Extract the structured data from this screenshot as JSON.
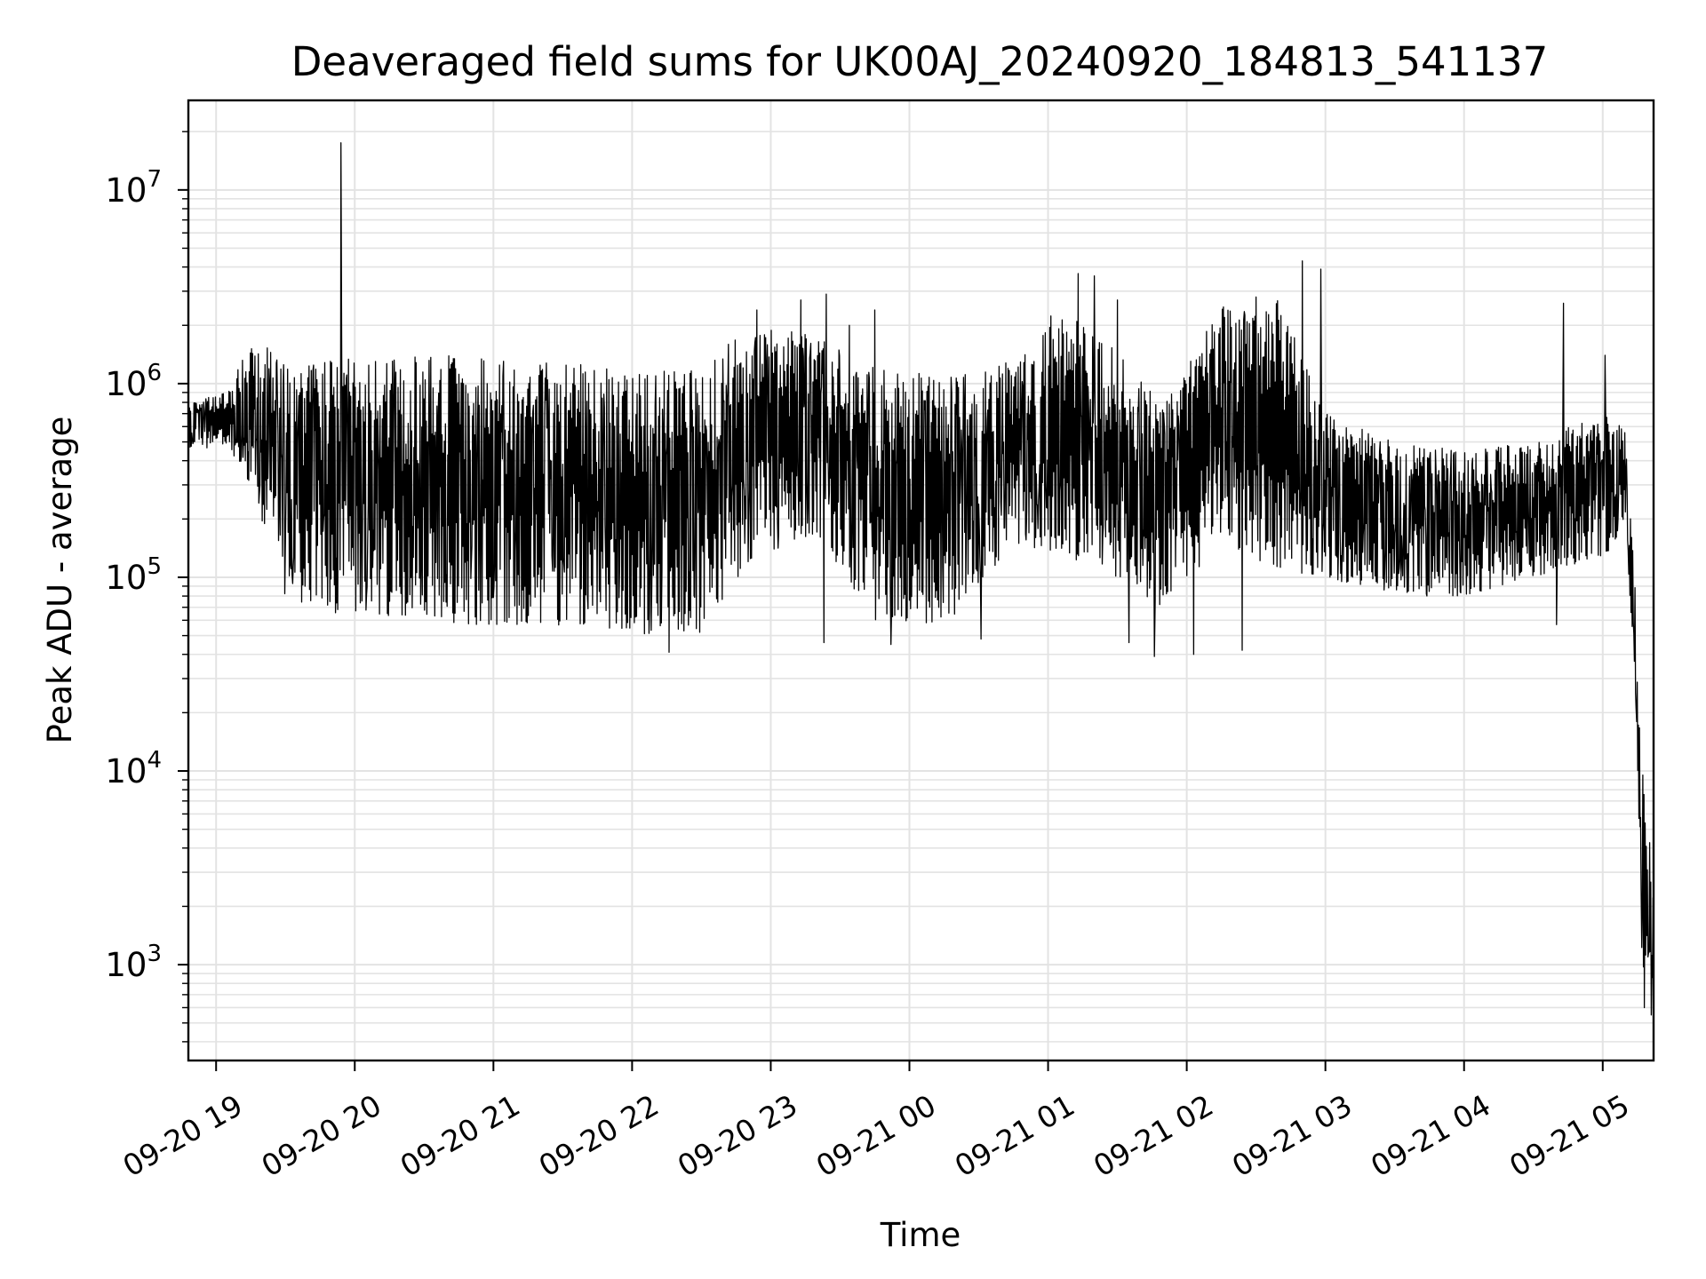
{
  "chart_data": {
    "type": "line",
    "title": "Deaveraged field sums for UK00AJ_20240920_184813_541137",
    "xlabel": "Time",
    "ylabel": "Peak ADU - average",
    "yscale": "log",
    "grid": true,
    "line_color": "#000000",
    "grid_color": "#e3e3e3",
    "x_range": [
      "2024-09-20 18:48",
      "2024-09-21 05:22"
    ],
    "ylim": [
      320,
      29000000
    ],
    "x_ticks": [
      {
        "label": "09-20 19",
        "time": "2024-09-20 19:00"
      },
      {
        "label": "09-20 20",
        "time": "2024-09-20 20:00"
      },
      {
        "label": "09-20 21",
        "time": "2024-09-20 21:00"
      },
      {
        "label": "09-20 22",
        "time": "2024-09-20 22:00"
      },
      {
        "label": "09-20 23",
        "time": "2024-09-20 23:00"
      },
      {
        "label": "09-21 00",
        "time": "2024-09-21 00:00"
      },
      {
        "label": "09-21 01",
        "time": "2024-09-21 01:00"
      },
      {
        "label": "09-21 02",
        "time": "2024-09-21 02:00"
      },
      {
        "label": "09-21 03",
        "time": "2024-09-21 03:00"
      },
      {
        "label": "09-21 04",
        "time": "2024-09-21 04:00"
      },
      {
        "label": "09-21 05",
        "time": "2024-09-21 05:00"
      }
    ],
    "y_ticks": [
      {
        "base": "10",
        "exp": "3",
        "value": 1000
      },
      {
        "base": "10",
        "exp": "4",
        "value": 10000
      },
      {
        "base": "10",
        "exp": "5",
        "value": 100000
      },
      {
        "base": "10",
        "exp": "6",
        "value": 1000000
      },
      {
        "base": "10",
        "exp": "7",
        "value": 10000000
      }
    ],
    "series": [
      {
        "band": [
          {
            "time": "2024-09-20 18:48",
            "low": 450000,
            "high": 800000
          },
          {
            "time": "2024-09-20 19:05",
            "low": 480000,
            "high": 900000
          },
          {
            "time": "2024-09-20 19:15",
            "low": 300000,
            "high": 1800000
          },
          {
            "time": "2024-09-20 19:30",
            "low": 80000,
            "high": 1300000
          },
          {
            "time": "2024-09-20 19:50",
            "low": 65000,
            "high": 1350000
          },
          {
            "time": "2024-09-20 20:10",
            "low": 60000,
            "high": 1350000
          },
          {
            "time": "2024-09-20 20:40",
            "low": 58000,
            "high": 1400000
          },
          {
            "time": "2024-09-20 21:10",
            "low": 55000,
            "high": 1300000
          },
          {
            "time": "2024-09-20 21:40",
            "low": 57000,
            "high": 1250000
          },
          {
            "time": "2024-09-20 22:10",
            "low": 50000,
            "high": 1150000
          },
          {
            "time": "2024-09-20 22:30",
            "low": 52000,
            "high": 1200000
          },
          {
            "time": "2024-09-20 22:50",
            "low": 120000,
            "high": 2000000
          },
          {
            "time": "2024-09-20 23:20",
            "low": 170000,
            "high": 1800000
          },
          {
            "time": "2024-09-20 23:45",
            "low": 60000,
            "high": 1200000
          },
          {
            "time": "2024-09-21 00:15",
            "low": 55000,
            "high": 1100000
          },
          {
            "time": "2024-09-21 00:45",
            "low": 150000,
            "high": 1400000
          },
          {
            "time": "2024-09-21 01:05",
            "low": 130000,
            "high": 2500000
          },
          {
            "time": "2024-09-21 01:30",
            "low": 100000,
            "high": 1500000
          },
          {
            "time": "2024-09-21 01:50",
            "low": 70000,
            "high": 800000
          },
          {
            "time": "2024-09-21 02:15",
            "low": 150000,
            "high": 2500000
          },
          {
            "time": "2024-09-21 02:40",
            "low": 110000,
            "high": 2700000
          },
          {
            "time": "2024-09-21 03:00",
            "low": 100000,
            "high": 700000
          },
          {
            "time": "2024-09-21 03:30",
            "low": 80000,
            "high": 500000
          },
          {
            "time": "2024-09-21 04:00",
            "low": 80000,
            "high": 450000
          },
          {
            "time": "2024-09-21 04:30",
            "low": 100000,
            "high": 500000
          },
          {
            "time": "2024-09-21 05:00",
            "low": 130000,
            "high": 700000
          },
          {
            "time": "2024-09-21 05:10",
            "low": 160000,
            "high": 600000
          },
          {
            "time": "2024-09-21 05:14",
            "low": 30000,
            "high": 90000
          },
          {
            "time": "2024-09-21 05:17",
            "low": 1000,
            "high": 12000
          },
          {
            "time": "2024-09-21 05:22",
            "low": 800,
            "high": 2500
          }
        ],
        "spikes": [
          {
            "time": "2024-09-20 19:54",
            "value": 17500000
          },
          {
            "time": "2024-09-20 22:54",
            "value": 2400000
          },
          {
            "time": "2024-09-20 23:13",
            "value": 2700000
          },
          {
            "time": "2024-09-20 23:24",
            "value": 2900000
          },
          {
            "time": "2024-09-20 23:34",
            "value": 2000000
          },
          {
            "time": "2024-09-20 23:45",
            "value": 2400000
          },
          {
            "time": "2024-09-21 01:13",
            "value": 3700000
          },
          {
            "time": "2024-09-21 01:20",
            "value": 3600000
          },
          {
            "time": "2024-09-21 01:30",
            "value": 2700000
          },
          {
            "time": "2024-09-21 02:30",
            "value": 2800000
          },
          {
            "time": "2024-09-21 02:50",
            "value": 4300000
          },
          {
            "time": "2024-09-21 02:58",
            "value": 3900000
          },
          {
            "time": "2024-09-21 04:43",
            "value": 2600000
          },
          {
            "time": "2024-09-21 05:01",
            "value": 1400000
          }
        ],
        "dips": [
          {
            "time": "2024-09-20 22:16",
            "value": 41000
          },
          {
            "time": "2024-09-20 23:23",
            "value": 46000
          },
          {
            "time": "2024-09-20 23:52",
            "value": 45000
          },
          {
            "time": "2024-09-21 00:31",
            "value": 48000
          },
          {
            "time": "2024-09-21 01:35",
            "value": 46000
          },
          {
            "time": "2024-09-21 01:46",
            "value": 39000
          },
          {
            "time": "2024-09-21 02:03",
            "value": 40000
          },
          {
            "time": "2024-09-21 02:24",
            "value": 42000
          },
          {
            "time": "2024-09-21 03:07",
            "value": 95000
          },
          {
            "time": "2024-09-21 04:40",
            "value": 57000
          },
          {
            "time": "2024-09-21 05:18",
            "value": 600
          },
          {
            "time": "2024-09-21 05:21",
            "value": 550
          }
        ]
      }
    ]
  }
}
